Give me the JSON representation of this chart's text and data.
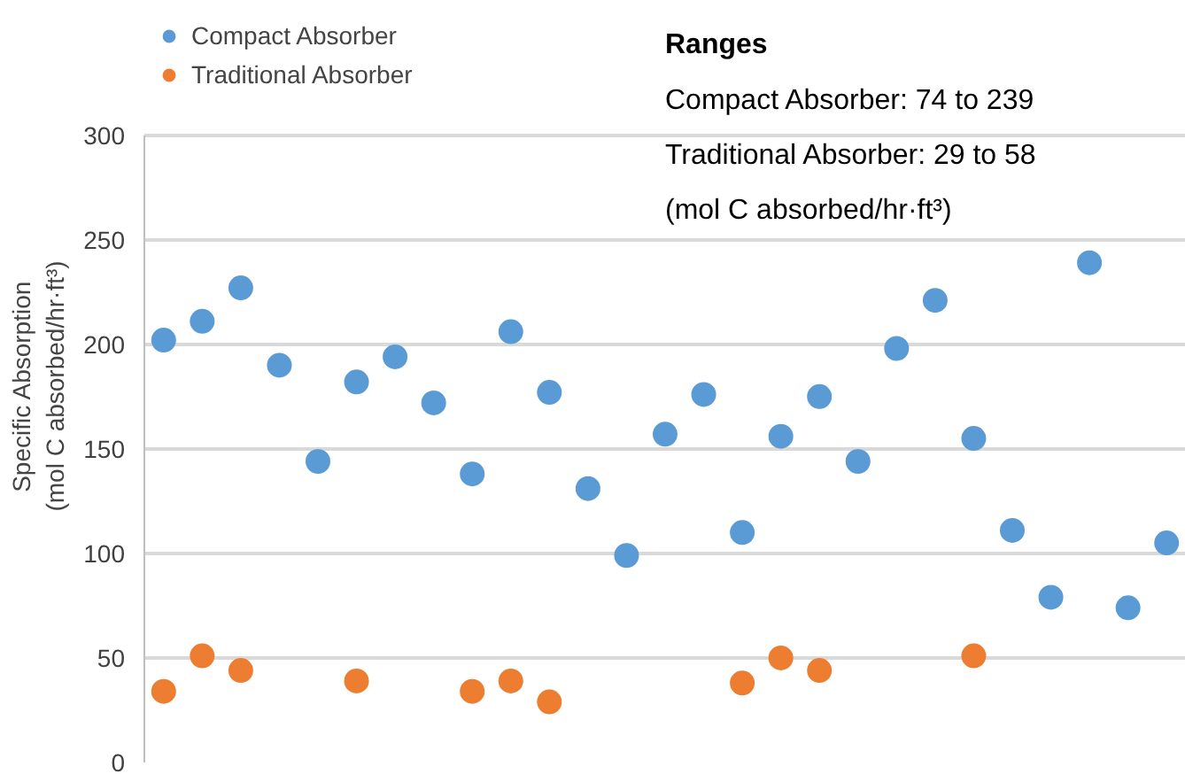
{
  "chart_data": {
    "type": "scatter",
    "ylabel": "Specific Absorption\n(mol C absorbed/hr·ft³)",
    "categories": [
      null,
      null,
      null,
      null,
      null,
      null,
      null,
      null,
      null,
      null,
      null,
      null,
      null,
      null,
      null,
      null,
      null,
      null,
      null,
      null,
      null,
      null,
      null,
      null,
      null,
      null,
      null
    ],
    "series": [
      {
        "name": "Compact Absorber",
        "color": "#5b9bd5",
        "values": [
          202,
          211,
          227,
          190,
          144,
          182,
          194,
          172,
          138,
          206,
          177,
          131,
          99,
          157,
          176,
          110,
          156,
          175,
          144,
          198,
          221,
          155,
          111,
          79,
          239,
          74,
          105
        ]
      },
      {
        "name": "Traditional Absorber",
        "color": "#ed7d31",
        "values": [
          34,
          51,
          44,
          null,
          null,
          39,
          null,
          null,
          34,
          39,
          29,
          null,
          null,
          null,
          null,
          38,
          50,
          44,
          null,
          null,
          null,
          51,
          null,
          null,
          null,
          null,
          null
        ]
      }
    ],
    "ylim": [
      0,
      300
    ],
    "yticks": [
      0,
      50,
      100,
      150,
      200,
      250,
      300
    ],
    "grid": "y",
    "legend": "top left",
    "marker": "circle",
    "annotations": [
      "Ranges",
      "Compact Absorber: 74 to 239",
      "Traditional Absorber: 29 to 58",
      "(mol C absorbed/hr·ft³)"
    ]
  }
}
